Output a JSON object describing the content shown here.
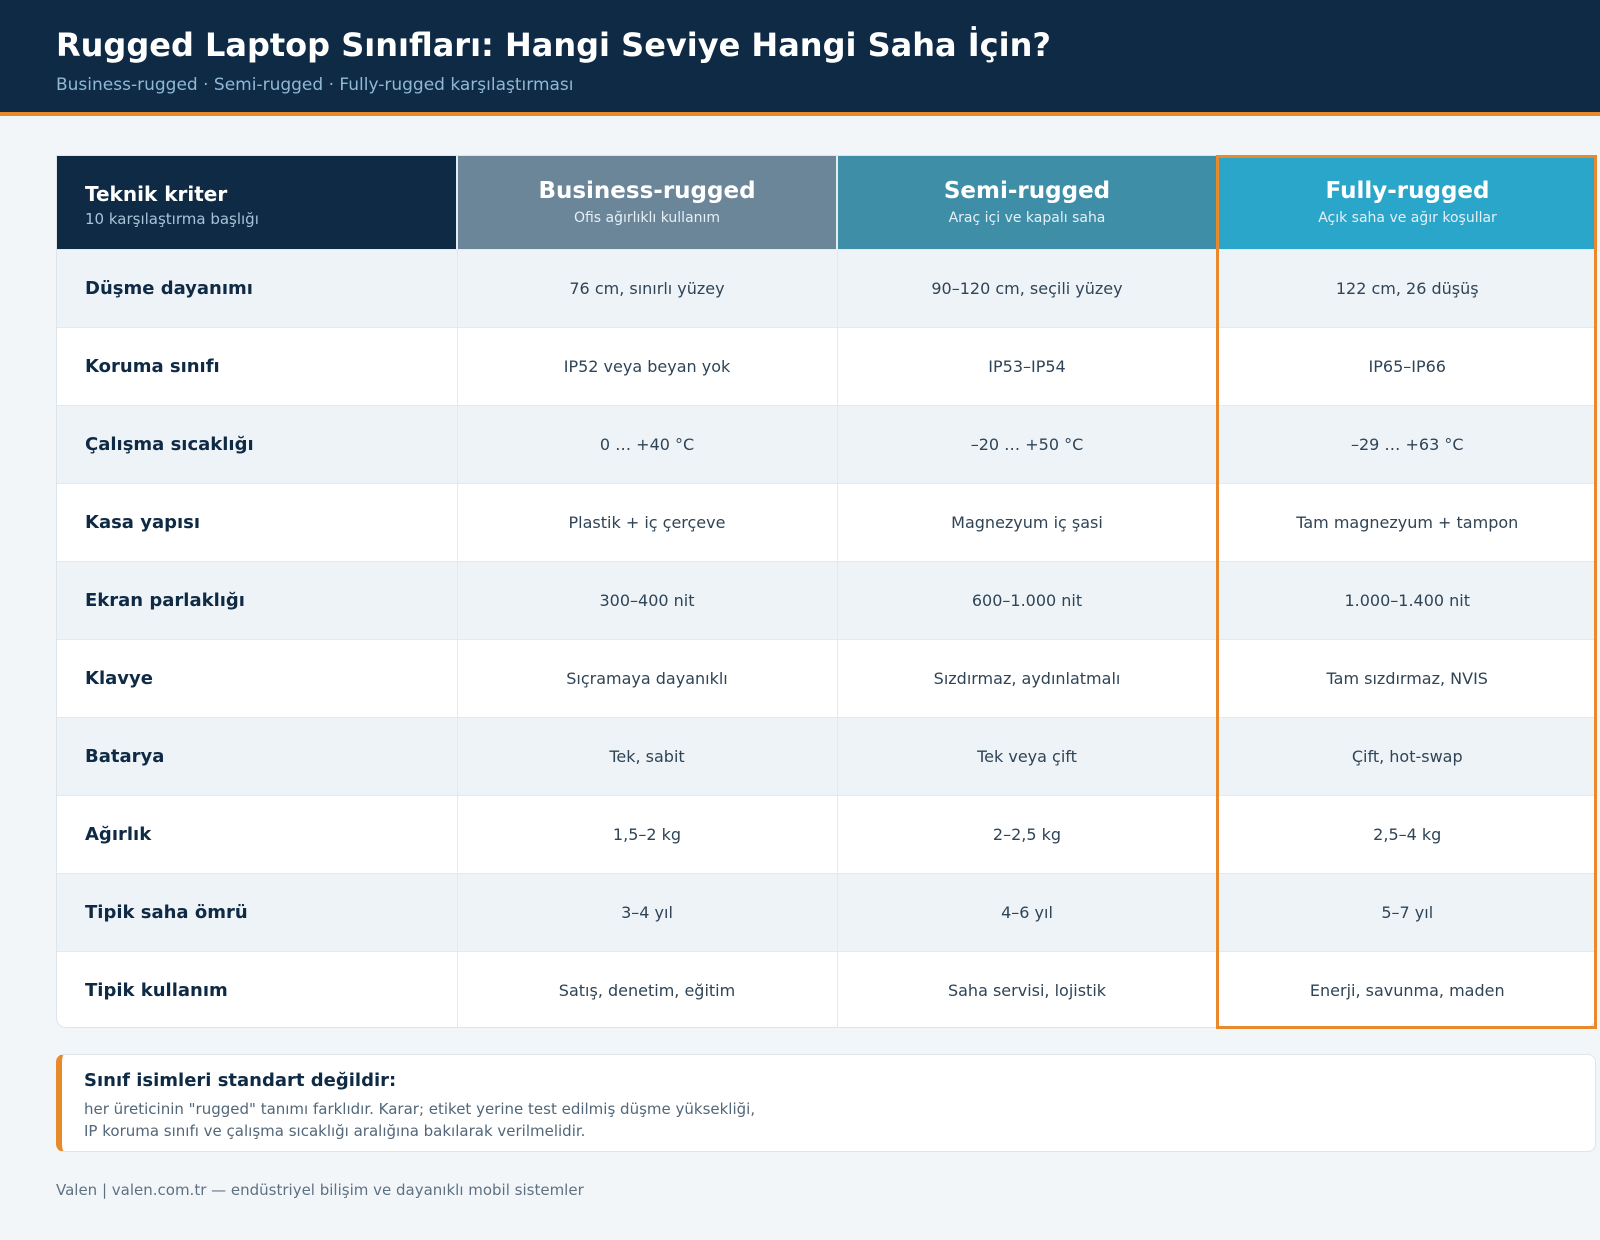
{
  "header": {
    "title": "Rugged Laptop Sınıfları: Hangi Seviye Hangi Saha İçin?",
    "subtitle": "Business-rugged · Semi-rugged · Fully-rugged karşılaştırması"
  },
  "table": {
    "criterion_header": {
      "title": "Teknik kriter",
      "subtitle": "10 karşılaştırma başlığı"
    },
    "classes": [
      {
        "name": "Business-rugged",
        "desc": "Ofis ağırlıklı kullanım",
        "color": "#6b8599"
      },
      {
        "name": "Semi-rugged",
        "desc": "Araç içi ve kapalı saha",
        "color": "#3e8ea8"
      },
      {
        "name": "Fully-rugged",
        "desc": "Açık saha ve ağır koşullar",
        "color": "#2ba6cb"
      }
    ],
    "highlight_color": "#e8892b",
    "rows": [
      {
        "criterion": "Düşme dayanımı",
        "values": [
          "76 cm, sınırlı yüzey",
          "90–120 cm, seçili yüzey",
          "122 cm, 26 düşüş"
        ]
      },
      {
        "criterion": "Koruma sınıfı",
        "values": [
          "IP52 veya beyan yok",
          "IP53–IP54",
          "IP65–IP66"
        ]
      },
      {
        "criterion": "Çalışma sıcaklığı",
        "values": [
          "0 … +40 °C",
          "–20 … +50 °C",
          "–29 … +63 °C"
        ]
      },
      {
        "criterion": "Kasa yapısı",
        "values": [
          "Plastik + iç çerçeve",
          "Magnezyum iç şasi",
          "Tam magnezyum + tampon"
        ]
      },
      {
        "criterion": "Ekran parlaklığı",
        "values": [
          "300–400 nit",
          "600–1.000 nit",
          "1.000–1.400 nit"
        ]
      },
      {
        "criterion": "Klavye",
        "values": [
          "Sıçramaya dayanıklı",
          "Sızdırmaz, aydınlatmalı",
          "Tam sızdırmaz, NVIS"
        ]
      },
      {
        "criterion": "Batarya",
        "values": [
          "Tek, sabit",
          "Tek veya çift",
          "Çift, hot-swap"
        ]
      },
      {
        "criterion": "Ağırlık",
        "values": [
          "1,5–2 kg",
          "2–2,5 kg",
          "2,5–4 kg"
        ]
      },
      {
        "criterion": "Tipik saha ömrü",
        "values": [
          "3–4 yıl",
          "4–6 yıl",
          "5–7 yıl"
        ]
      },
      {
        "criterion": "Tipik kullanım",
        "values": [
          "Satış, denetim, eğitim",
          "Saha servisi, lojistik",
          "Enerji, savunma, maden"
        ]
      }
    ]
  },
  "note": {
    "title": "Sınıf isimleri standart değildir:",
    "line1": "her üreticinin \"rugged\" tanımı farklıdır. Karar; etiket yerine test edilmiş düşme yüksekliği,",
    "line2": "IP koruma sınıfı ve çalışma sıcaklığı aralığına bakılarak verilmelidir."
  },
  "footer": {
    "text": "Valen | valen.com.tr — endüstriyel bilişim ve dayanıklı mobil sistemler"
  }
}
